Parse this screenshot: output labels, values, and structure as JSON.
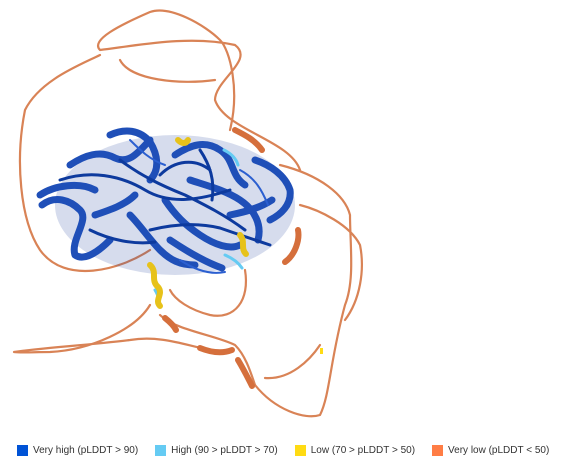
{
  "viewer": {
    "subject": "protein-structure-cartoon",
    "confidence_colors": {
      "very_high": "#0053d6",
      "high": "#65cbf3",
      "low": "#ffdb13",
      "very_low": "#ff7d45"
    }
  },
  "legend": {
    "items": [
      {
        "label": "Very high (pLDDT > 90)",
        "color": "#0053d6"
      },
      {
        "label": "High (90 > pLDDT > 70)",
        "color": "#65cbf3"
      },
      {
        "label": "Low (70 > pLDDT > 50)",
        "color": "#ffdb13"
      },
      {
        "label": "Very low (pLDDT < 50)",
        "color": "#ff7d45"
      }
    ]
  }
}
